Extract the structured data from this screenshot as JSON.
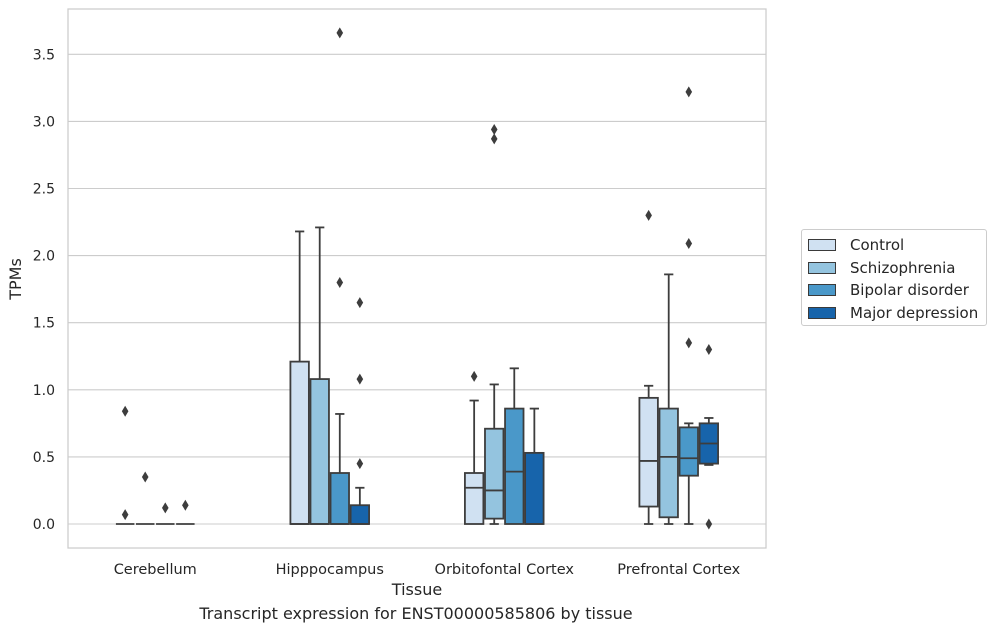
{
  "caption": "Transcript expression for ENST00000585806 by tissue",
  "chart_data": {
    "type": "box",
    "title": "",
    "xlabel": "Tissue",
    "ylabel": "TPMs",
    "ylim": [
      -0.18,
      3.86
    ],
    "yticks": [
      "0.0",
      "0.5",
      "1.0",
      "1.5",
      "2.0",
      "2.5",
      "3.0",
      "3.5"
    ],
    "grid": true,
    "legend_position": "right",
    "categories": [
      "Cerebellum",
      "Hipppocampus",
      "Orbitofontal Cortex",
      "Prefrontal Cortex"
    ],
    "series": [
      {
        "name": "Control",
        "color": "#d0e1f2",
        "boxes": [
          {
            "whislo": 0,
            "q1": 0,
            "med": 0,
            "q3": 0,
            "whishi": 0,
            "fliers": [
              0.84,
              0.07
            ]
          },
          {
            "whislo": 0,
            "q1": 0,
            "med": 0,
            "q3": 1.21,
            "whishi": 2.18,
            "fliers": []
          },
          {
            "whislo": 0,
            "q1": 0,
            "med": 0.27,
            "q3": 0.38,
            "whishi": 0.92,
            "fliers": [
              1.1
            ]
          },
          {
            "whislo": 0,
            "q1": 0.13,
            "med": 0.47,
            "q3": 0.94,
            "whishi": 1.03,
            "fliers": [
              2.3
            ]
          }
        ]
      },
      {
        "name": "Schizophrenia",
        "color": "#94c4df",
        "boxes": [
          {
            "whislo": 0,
            "q1": 0,
            "med": 0,
            "q3": 0,
            "whishi": 0,
            "fliers": [
              0.35
            ]
          },
          {
            "whislo": 0,
            "q1": 0,
            "med": 0,
            "q3": 1.08,
            "whishi": 2.21,
            "fliers": []
          },
          {
            "whislo": 0,
            "q1": 0.04,
            "med": 0.25,
            "q3": 0.71,
            "whishi": 1.04,
            "fliers": [
              2.94,
              2.87
            ]
          },
          {
            "whislo": 0,
            "q1": 0.05,
            "med": 0.5,
            "q3": 0.86,
            "whishi": 1.86,
            "fliers": []
          }
        ]
      },
      {
        "name": "Bipolar disorder",
        "color": "#4a98c9",
        "boxes": [
          {
            "whislo": 0,
            "q1": 0,
            "med": 0,
            "q3": 0,
            "whishi": 0,
            "fliers": [
              0.12
            ]
          },
          {
            "whislo": 0,
            "q1": 0,
            "med": 0,
            "q3": 0.38,
            "whishi": 0.82,
            "fliers": [
              3.66,
              1.8
            ]
          },
          {
            "whislo": 0,
            "q1": 0,
            "med": 0.39,
            "q3": 0.86,
            "whishi": 1.16,
            "fliers": []
          },
          {
            "whislo": 0,
            "q1": 0.36,
            "med": 0.49,
            "q3": 0.72,
            "whishi": 0.75,
            "fliers": [
              3.22,
              2.09,
              1.35
            ]
          }
        ]
      },
      {
        "name": "Major depression",
        "color": "#1764ab",
        "boxes": [
          {
            "whislo": 0,
            "q1": 0,
            "med": 0,
            "q3": 0,
            "whishi": 0,
            "fliers": [
              0.14
            ]
          },
          {
            "whislo": 0,
            "q1": 0,
            "med": 0,
            "q3": 0.14,
            "whishi": 0.27,
            "fliers": [
              1.65,
              1.08,
              0.45
            ]
          },
          {
            "whislo": 0,
            "q1": 0,
            "med": 0,
            "q3": 0.53,
            "whishi": 0.86,
            "fliers": []
          },
          {
            "whislo": 0.44,
            "q1": 0.45,
            "med": 0.6,
            "q3": 0.75,
            "whishi": 0.79,
            "fliers": [
              1.3,
              0
            ]
          }
        ]
      }
    ]
  }
}
